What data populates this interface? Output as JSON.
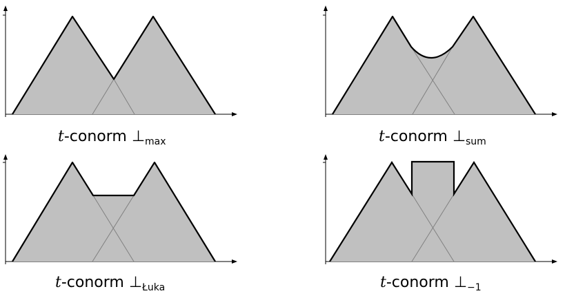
{
  "colors": {
    "fill": "#c0c0c0",
    "outline": "#000000",
    "inner_lines": "#808080",
    "axis": "#000000"
  },
  "panels": [
    {
      "id": "max",
      "caption": {
        "var": "t",
        "text": "-conorm ⊥",
        "sub": "max"
      }
    },
    {
      "id": "sum",
      "caption": {
        "var": "t",
        "text": "-conorm ⊥",
        "sub": "sum"
      }
    },
    {
      "id": "luka",
      "caption": {
        "var": "t",
        "text": "-conorm ⊥",
        "sub": "Łuka"
      }
    },
    {
      "id": "drastic",
      "caption": {
        "var": "t",
        "text": "-conorm ⊥",
        "sub": "−1"
      }
    }
  ]
}
